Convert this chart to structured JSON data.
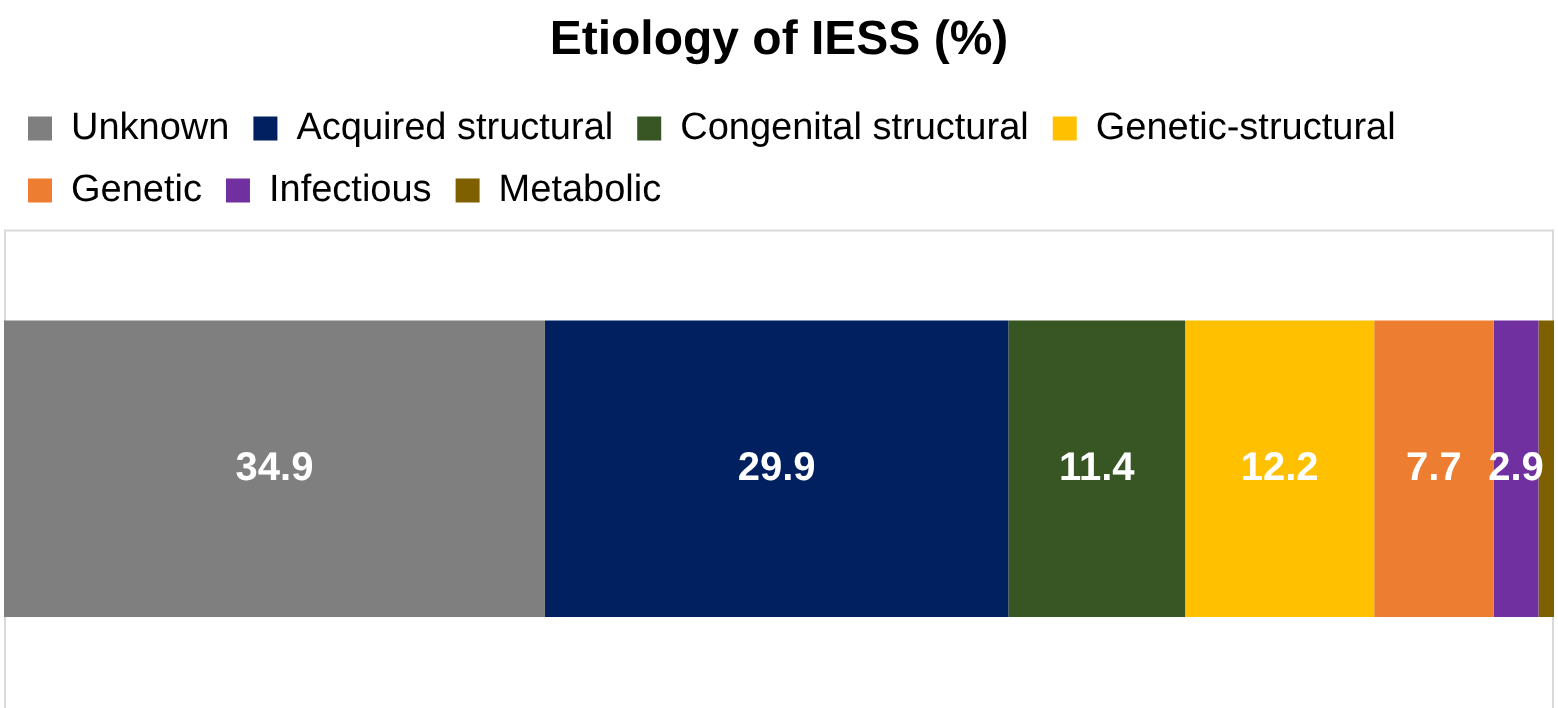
{
  "chart_data": {
    "type": "bar",
    "title": "Etiology of IESS (%)",
    "orientation": "horizontal",
    "stacked": true,
    "legend": "top",
    "categories": [
      null
    ],
    "series": [
      {
        "name": "Unknown",
        "color": "#7f7f7f",
        "values": [
          34.9
        ],
        "value_labels": [
          "34.9"
        ]
      },
      {
        "name": "Acquired structural",
        "color": "#002060",
        "values": [
          29.9
        ],
        "value_labels": [
          "29.9"
        ]
      },
      {
        "name": "Congenital structural",
        "color": "#375623",
        "values": [
          11.4
        ],
        "value_labels": [
          "11.4"
        ]
      },
      {
        "name": "Genetic-structural",
        "color": "#ffc000",
        "values": [
          12.2
        ],
        "value_labels": [
          "12.2"
        ]
      },
      {
        "name": "Genetic",
        "color": "#ed7d31",
        "values": [
          7.7
        ],
        "value_labels": [
          "7.7"
        ]
      },
      {
        "name": "Infectious",
        "color": "#7030a0",
        "values": [
          2.9
        ],
        "value_labels": [
          "2.9"
        ]
      },
      {
        "name": "Metabolic",
        "color": "#7f6000",
        "values": [
          1.0
        ],
        "value_labels": [
          null
        ]
      }
    ]
  }
}
